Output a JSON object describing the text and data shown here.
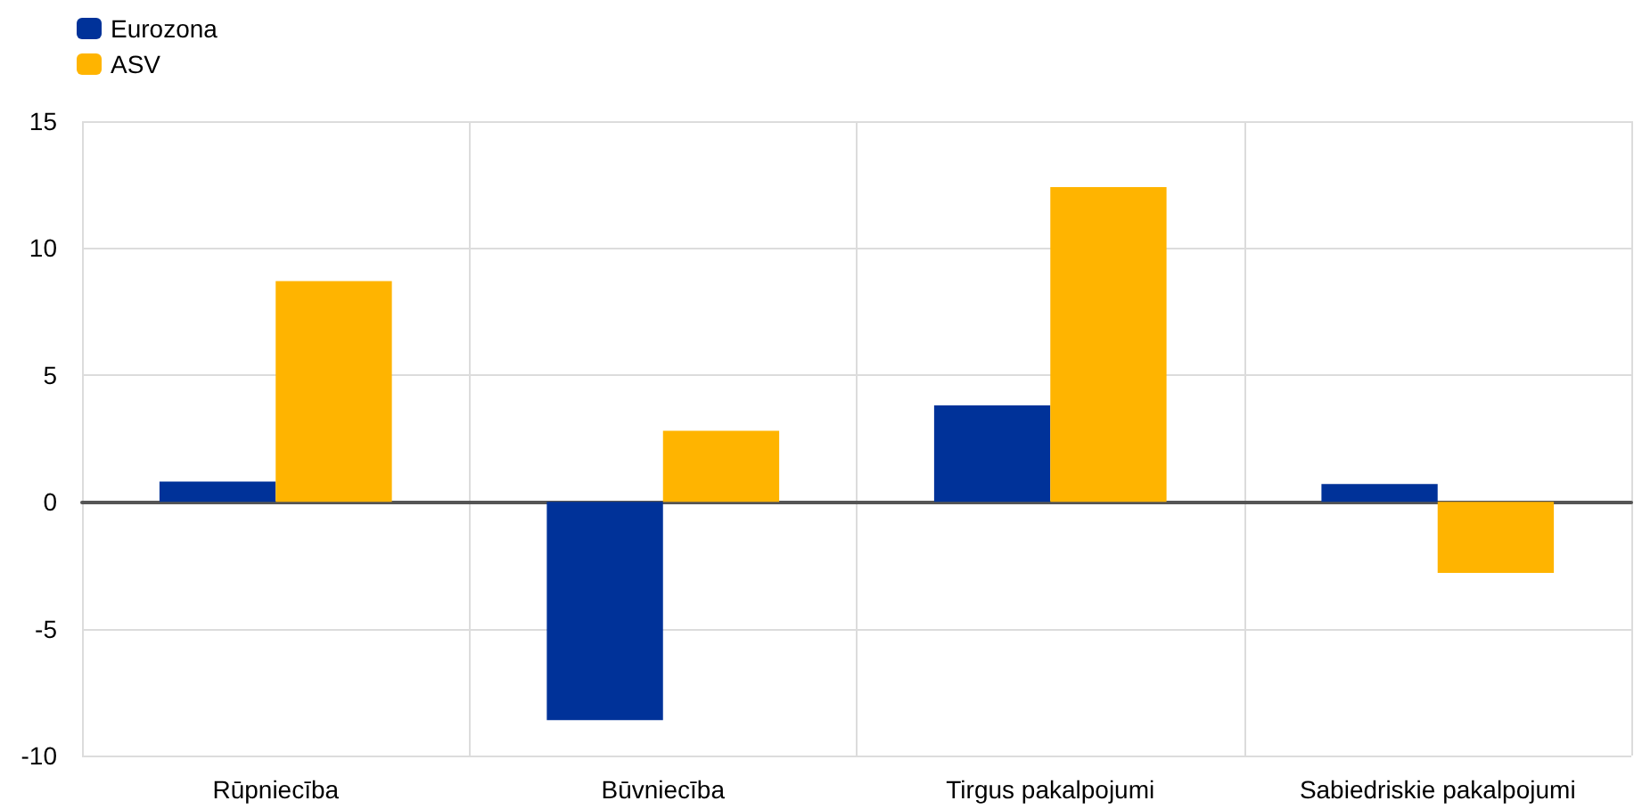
{
  "chart_data": {
    "type": "bar",
    "categories": [
      "Rūpniecība",
      "Būvniecība",
      "Tirgus pakalpojumi",
      "Sabiedriskie pakalpojumi"
    ],
    "series": [
      {
        "name": "Eurozona",
        "color": "#003299",
        "values": [
          0.8,
          -8.6,
          3.8,
          0.7
        ]
      },
      {
        "name": "ASV",
        "color": "#ffb400",
        "values": [
          8.7,
          2.8,
          12.4,
          -2.8
        ]
      }
    ],
    "ylim": [
      -10,
      15
    ],
    "yticks": [
      -10,
      -5,
      0,
      5,
      10,
      15
    ],
    "grid": true,
    "legend": "top left"
  }
}
